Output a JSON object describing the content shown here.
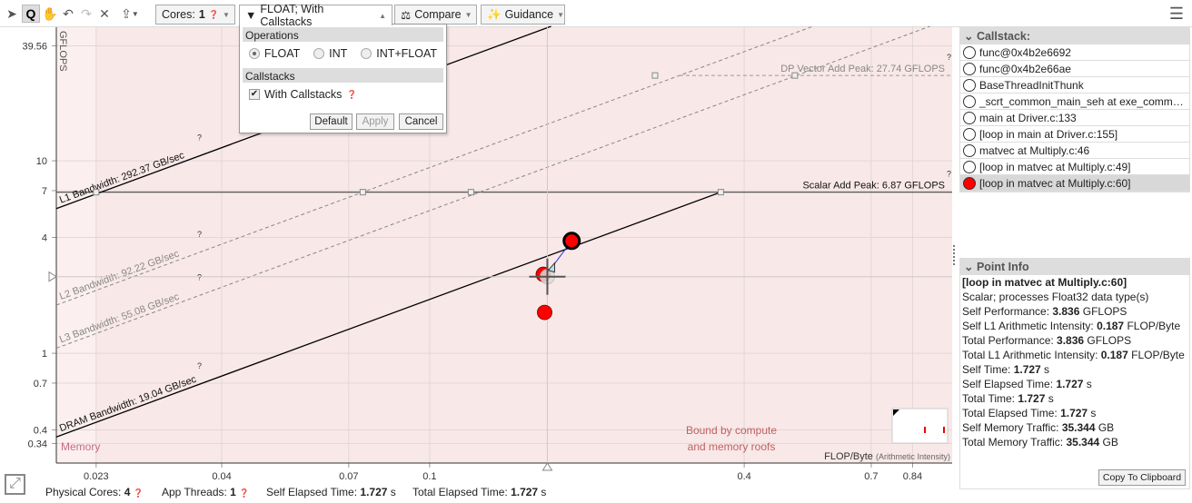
{
  "toolbar": {
    "cores_label": "Cores:",
    "cores_value": "1",
    "filter_label": "FLOAT; With Callstacks",
    "compare_label": "Compare",
    "guidance_label": "Guidance",
    "icons": [
      "pointer-icon",
      "zoom-icon",
      "pan-icon",
      "undo-icon",
      "redo-icon",
      "reset-icon",
      "export-icon",
      "menu-icon"
    ]
  },
  "filter_popup": {
    "operations_title": "Operations",
    "options": [
      "FLOAT",
      "INT",
      "INT+FLOAT"
    ],
    "selected": "FLOAT",
    "callstacks_title": "Callstacks",
    "with_callstacks_label": "With Callstacks",
    "with_callstacks_checked": true,
    "default_label": "Default",
    "apply_label": "Apply",
    "cancel_label": "Cancel"
  },
  "callstack": {
    "title": "Callstack:",
    "items": [
      "func@0x4b2e6692",
      "func@0x4b2e66ae",
      "BaseThreadInitThunk",
      "_scrt_common_main_seh at exe_comm…",
      "main at Driver.c:133",
      "[loop in main at Driver.c:155]",
      "matvec at Multiply.c:46",
      "[loop in matvec at Multiply.c:49]",
      "[loop in matvec at Multiply.c:60]"
    ],
    "selected_index": 8
  },
  "point_info": {
    "title": "Point Info",
    "name": "[loop in matvec at Multiply.c:60]",
    "lines": [
      {
        "label": "Scalar; processes Float32 data type(s)",
        "value": "",
        "unit": ""
      },
      {
        "label": "Self Performance: ",
        "value": "3.836",
        "unit": " GFLOPS"
      },
      {
        "label": "Self L1 Arithmetic Intensity: ",
        "value": "0.187",
        "unit": " FLOP/Byte"
      },
      {
        "label": "Total Performance: ",
        "value": "3.836",
        "unit": " GFLOPS"
      },
      {
        "label": "Total L1 Arithmetic Intensity: ",
        "value": "0.187",
        "unit": " FLOP/Byte"
      },
      {
        "label": "Self Time: ",
        "value": "1.727",
        "unit": " s"
      },
      {
        "label": "Self Elapsed Time: ",
        "value": "1.727",
        "unit": " s"
      },
      {
        "label": "Total Time: ",
        "value": "1.727",
        "unit": " s"
      },
      {
        "label": "Total Elapsed Time: ",
        "value": "1.727",
        "unit": " s"
      },
      {
        "label": "Self Memory Traffic: ",
        "value": "35.344",
        "unit": " GB"
      },
      {
        "label": "Total Memory Traffic: ",
        "value": "35.344",
        "unit": " GB"
      }
    ],
    "copy_label": "Copy To Clipboard"
  },
  "status": {
    "cores_label": "Physical Cores: ",
    "cores": "4",
    "threads_label": "App Threads: ",
    "threads": "1",
    "self_label": "Self Elapsed Time: ",
    "self": "1.727",
    "total_label": "Total Elapsed Time: ",
    "total": "1.727",
    "unit": " s"
  },
  "chart_data": {
    "type": "scatter",
    "xscale": "log",
    "yscale": "log",
    "ylabel": "GFLOPS",
    "xlabel": "FLOP/Byte",
    "xlabel_note": "(Arithmetic Intensity)",
    "xticks": [
      0.023,
      0.04,
      0.07,
      0.1,
      0.4,
      0.7,
      0.84
    ],
    "xtick_labels": [
      "0.023",
      "0.04",
      "0.07",
      "0.1",
      "0.4",
      "0.7",
      "0.84"
    ],
    "yticks": [
      39.56,
      10,
      7,
      4,
      1,
      0.7,
      0.4,
      0.34
    ],
    "ytick_labels": [
      "39.56",
      "10",
      "7",
      "4",
      "1",
      "0.7",
      "0.4",
      "0.34"
    ],
    "xlim": [
      0.0193,
      1.0
    ],
    "ylim": [
      0.269,
      49.4
    ],
    "bandwidth_roofs": [
      {
        "label": "L1 Bandwidth: 292.37 GB/sec",
        "gbps": 292.37,
        "style": "solid"
      },
      {
        "label": "L2 Bandwidth: 92.22 GB/sec",
        "gbps": 92.22,
        "style": "dashed"
      },
      {
        "label": "L3 Bandwidth: 55.08 GB/sec",
        "gbps": 55.08,
        "style": "dashed"
      },
      {
        "label": "DRAM Bandwidth: 19.04 GB/sec",
        "gbps": 19.04,
        "style": "solid"
      }
    ],
    "compute_roofs": [
      {
        "label": "DP Vector Add Peak: 27.74 GFLOPS",
        "gflops": 27.74,
        "style": "dashed"
      },
      {
        "label": "Scalar Add Peak: 6.87 GFLOPS",
        "gflops": 6.87,
        "style": "solid"
      }
    ],
    "points": [
      {
        "x": 0.187,
        "y": 3.836,
        "selected": true
      },
      {
        "x": 0.165,
        "y": 2.57
      },
      {
        "x": 0.166,
        "y": 1.63
      }
    ],
    "crosshair": {
      "x": 0.168,
      "y": 2.5
    },
    "region_labels": [
      "Memory",
      "Bound by compute and memory roofs"
    ],
    "colors": {
      "point": "#ff0000",
      "region": "#f9e8e8",
      "roof": "#000000",
      "dashed_roof": "#999999"
    }
  }
}
